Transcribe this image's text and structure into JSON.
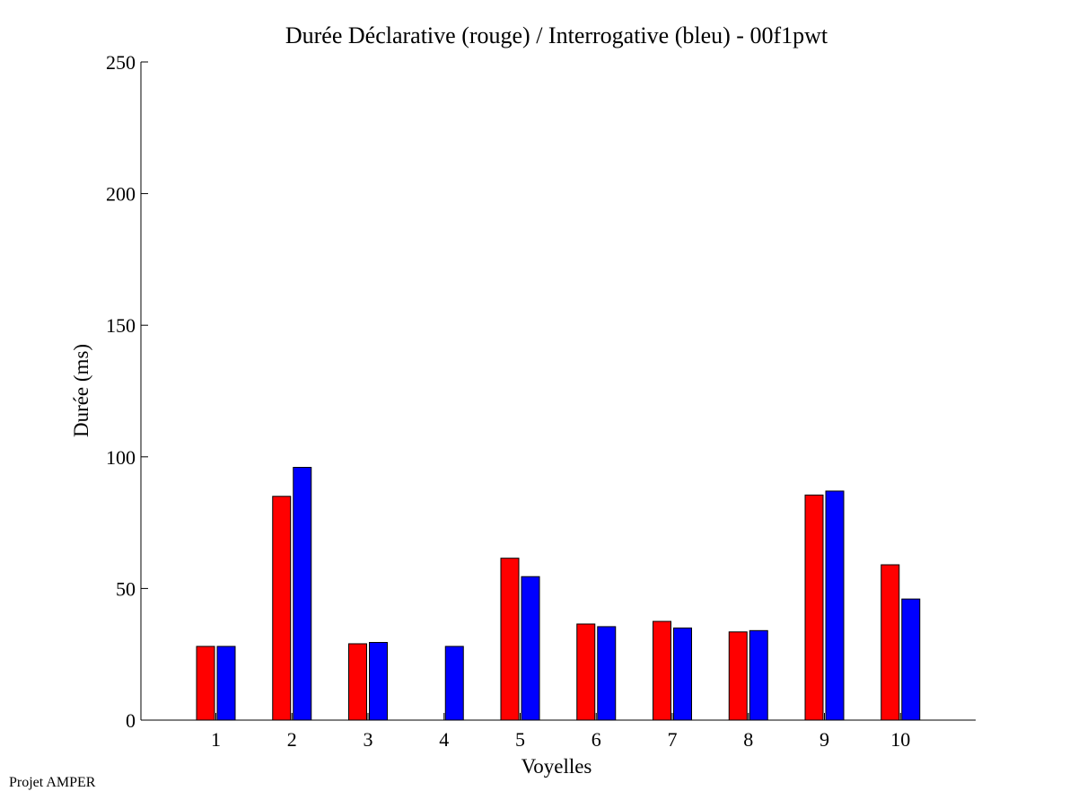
{
  "chart_data": {
    "type": "bar",
    "title": "Durée Déclarative (rouge) / Interrogative (bleu) - 00f1pwt",
    "xlabel": "Voyelles",
    "ylabel": "Durée (ms)",
    "ylim": [
      0,
      250
    ],
    "yticks": [
      0,
      50,
      100,
      150,
      200,
      250
    ],
    "categories": [
      "1",
      "2",
      "3",
      "4",
      "5",
      "6",
      "7",
      "8",
      "9",
      "10"
    ],
    "series": [
      {
        "color": "#ff0000",
        "values": [
          28,
          85,
          29,
          0,
          61.5,
          36.5,
          37.5,
          33.5,
          85.5,
          59
        ]
      },
      {
        "color": "#0000ff",
        "values": [
          28,
          96,
          29.5,
          28,
          54.5,
          35.5,
          35,
          34,
          87,
          46
        ]
      }
    ],
    "grid": false,
    "legend": "none"
  },
  "footer": {
    "text": "Projet AMPER"
  }
}
